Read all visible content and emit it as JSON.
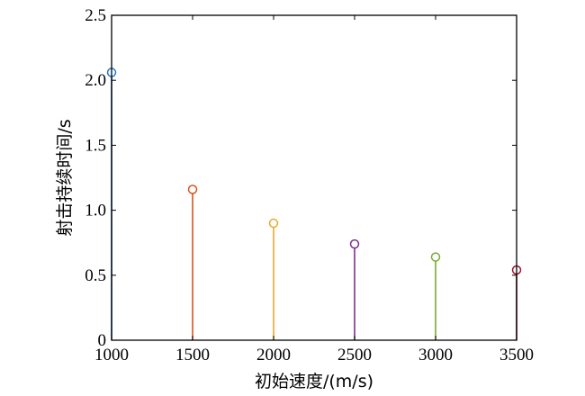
{
  "chart_data": {
    "type": "stem",
    "title": "",
    "xlabel": "初始速度/(m/s)",
    "ylabel": "射击持续时间/s",
    "xlim": [
      1000,
      3500
    ],
    "ylim": [
      0,
      2.5
    ],
    "xticks": [
      1000,
      1500,
      2000,
      2500,
      3000,
      3500
    ],
    "xtick_labels": [
      "1000",
      "1500",
      "2000",
      "2500",
      "3000",
      "3500"
    ],
    "yticks": [
      0,
      0.5,
      1.0,
      1.5,
      2.0,
      2.5
    ],
    "ytick_labels": [
      "0",
      "0.5",
      "1.0",
      "1.5",
      "2.0",
      "2.5"
    ],
    "grid": false,
    "legend": "none",
    "points": [
      {
        "x": 1000,
        "y": 2.06,
        "color": "#1f77c4"
      },
      {
        "x": 1500,
        "y": 1.16,
        "color": "#d9541c"
      },
      {
        "x": 2000,
        "y": 0.9,
        "color": "#e8a92b"
      },
      {
        "x": 2500,
        "y": 0.74,
        "color": "#7e2f8e"
      },
      {
        "x": 3000,
        "y": 0.64,
        "color": "#77ac30"
      },
      {
        "x": 3500,
        "y": 0.54,
        "color": "#a2142f"
      }
    ]
  }
}
